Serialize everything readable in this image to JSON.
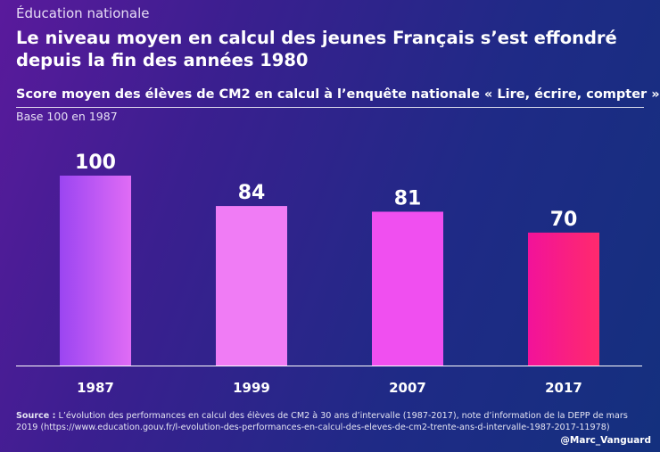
{
  "kicker": "Éducation nationale",
  "title": "Le niveau moyen en calcul des jeunes Français s’est effondré depuis la fin des années 1980",
  "subtitle": "Score moyen des élèves de CM2 en calcul à l’enquête nationale « Lire, écrire, compter »",
  "base_note": "Base 100 en 1987",
  "source_label": "Source :",
  "source_text": "L’évolution des performances en calcul des élèves de CM2 à 30 ans d’intervalle (1987-2017), note d’information de la DEPP de mars 2019 (https://www.education.gouv.fr/l-evolution-des-performances-en-calcul-des-eleves-de-cm2-trente-ans-d-intervalle-1987-2017-11978)",
  "handle": "@Marc_Vanguard",
  "colors": {
    "bar_gradients": [
      [
        "#9b45f2",
        "#e06cf5"
      ],
      [
        "#f07cf5",
        "#f07cf5"
      ],
      [
        "#f04ff0",
        "#f04ff0"
      ],
      [
        "#f2129a",
        "#ff2a6d"
      ]
    ],
    "axis": "#ffffff",
    "text": "#ffffff"
  },
  "chart_data": {
    "type": "bar",
    "categories": [
      "1987",
      "1999",
      "2007",
      "2017"
    ],
    "values": [
      100,
      84,
      81,
      70
    ],
    "data_labels": [
      "100",
      "84",
      "81",
      "70"
    ],
    "ylim": [
      0,
      100
    ],
    "grid": false,
    "legend": "none"
  }
}
